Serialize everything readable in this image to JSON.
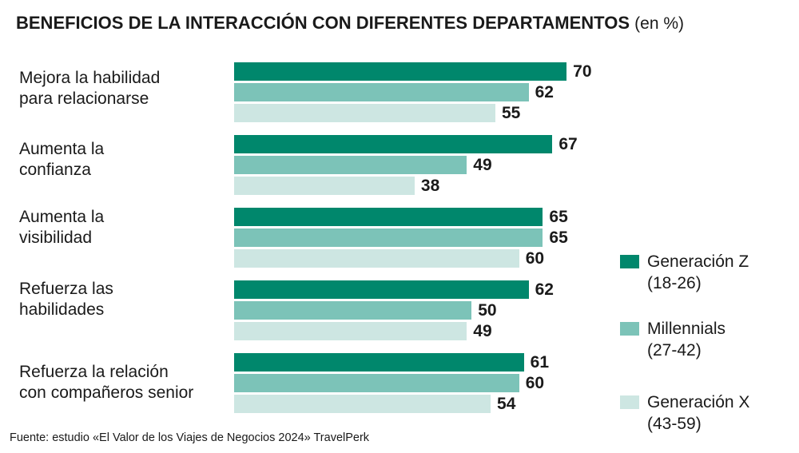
{
  "title": {
    "bold": "BENEFICIOS DE LA INTERACCIÓN CON DIFERENTES DEPARTAMENTOS",
    "unit": "(en %)"
  },
  "colors": {
    "gen_z": "#00876c",
    "millennials": "#7cc3b8",
    "gen_x": "#cde6e2"
  },
  "chart_data": {
    "type": "bar",
    "orientation": "horizontal",
    "title": "BENEFICIOS DE LA INTERACCIÓN CON DIFERENTES DEPARTAMENTOS (en %)",
    "categories": [
      [
        "Mejora la habilidad",
        "para relacionarse"
      ],
      [
        "Aumenta la",
        "confianza"
      ],
      [
        "Aumenta la",
        "visibilidad"
      ],
      [
        "Refuerza las",
        "habilidades"
      ],
      [
        "Refuerza la relación",
        "con compañeros senior"
      ]
    ],
    "series": [
      {
        "name": "Generación Z",
        "range": "(18-26)",
        "color": "#00876c",
        "values": [
          70,
          67,
          65,
          62,
          61
        ]
      },
      {
        "name": "Millennials",
        "range": "(27-42)",
        "color": "#7cc3b8",
        "values": [
          62,
          49,
          65,
          50,
          60
        ]
      },
      {
        "name": "Generación X",
        "range": "(43-59)",
        "color": "#cde6e2",
        "values": [
          55,
          38,
          60,
          49,
          54
        ]
      }
    ],
    "xlim": [
      0,
      100
    ],
    "grid": false,
    "legend": "right"
  },
  "source": "Fuente: estudio «El Valor de los Viajes de Negocios 2024» TravelPerk"
}
